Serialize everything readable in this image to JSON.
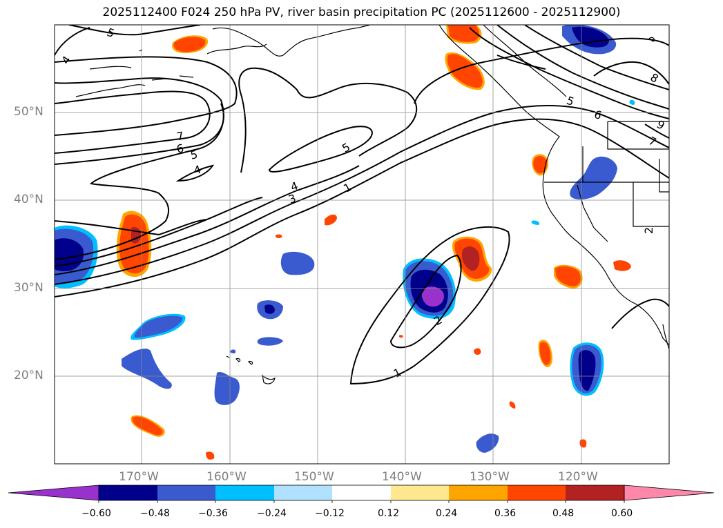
{
  "title": "2025112400 F024 250 hPa PV, river basin precipitation PC (2025112600 - 2025112900)",
  "map": {
    "lat_labels": [
      "50°N",
      "40°N",
      "30°N",
      "20°N"
    ],
    "lon_labels": [
      "170°W",
      "160°W",
      "150°W",
      "140°W",
      "130°W",
      "120°W"
    ],
    "contour_labels": [
      "5",
      "4",
      "7",
      "6",
      "5",
      "4",
      "4",
      "3",
      "5",
      "1",
      "1",
      "2",
      "5",
      "6",
      "7",
      "8",
      "9",
      "2"
    ],
    "colors": {
      "dark_blue": "#00008b",
      "med_blue": "#3a5bcf",
      "cyan": "#00bfff",
      "purple": "#9932cc",
      "orange_red": "#ff4500",
      "orange": "#ffa500",
      "firebrick": "#b22222"
    }
  },
  "colorbar": {
    "ticks": [
      "−0.60",
      "−0.48",
      "−0.36",
      "−0.24",
      "−0.12",
      "0.12",
      "0.24",
      "0.36",
      "0.48",
      "0.60"
    ],
    "colors": [
      "#9932cc",
      "#00008b",
      "#3a5bcf",
      "#00bfff",
      "#b0e2ff",
      "#ffffff",
      "#ffe88f",
      "#ffa500",
      "#ff4500",
      "#b22222",
      "#ff88aa"
    ]
  }
}
